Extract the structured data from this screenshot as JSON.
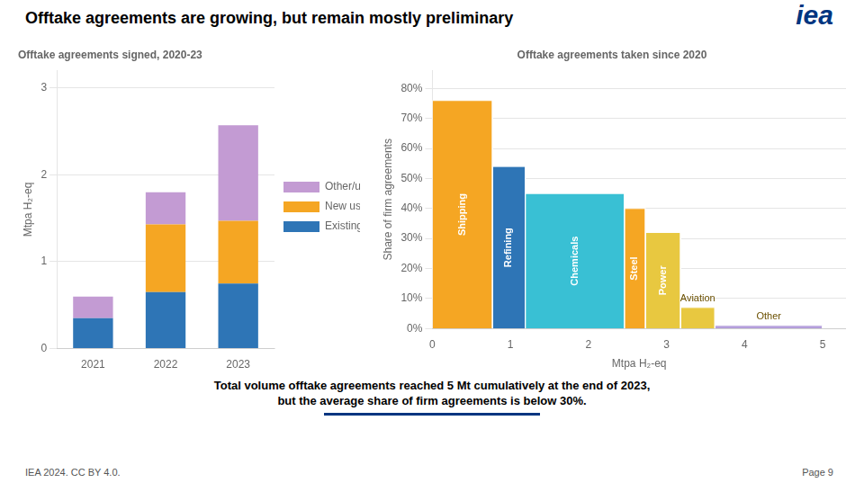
{
  "title": "Offtake agreements are growing, but remain mostly preliminary",
  "annotations": [
    "iea",
    "Total volume offtake agreements reached 5 Mt cumulatively at the end of 2023,",
    "but the average share of firm agreements is below 30%.",
    "IEA 2024. CC BY 4.0.",
    "Page 9"
  ],
  "chart_data": [
    {
      "type": "bar",
      "subtitle": "Offtake agreements signed, 2020-23",
      "categories": [
        "2021",
        "2022",
        "2023"
      ],
      "series": [
        {
          "name": "Existing uses",
          "color": "#2E75B6",
          "values": [
            0.35,
            0.65,
            0.75
          ]
        },
        {
          "name": "New uses",
          "color": "#F5A623",
          "values": [
            0.0,
            0.78,
            0.72
          ]
        },
        {
          "name": "Other/unknown",
          "color": "#C39BD3",
          "values": [
            0.25,
            0.37,
            1.1
          ]
        }
      ],
      "stacked": true,
      "ylabel": "Mtpa H₂-eq",
      "ylim": [
        0,
        3.2
      ],
      "yticks": [
        0,
        1,
        2,
        3
      ],
      "grid": true,
      "legend": "right"
    },
    {
      "type": "bar",
      "subtitle": "Offtake agreements taken since 2020",
      "categories": [
        "Shipping",
        "Refining",
        "Chemicals",
        "Steel",
        "Power",
        "Aviation",
        "Other"
      ],
      "x_start": [
        0.0,
        0.77,
        1.19,
        2.46,
        2.73,
        3.18,
        3.62
      ],
      "x_end": [
        0.77,
        1.19,
        2.46,
        2.73,
        3.18,
        3.62,
        5.0
      ],
      "values": [
        0.76,
        0.54,
        0.45,
        0.4,
        0.32,
        0.07,
        0.01
      ],
      "colors": [
        "#F5A623",
        "#2E75B6",
        "#39C0D4",
        "#F5A623",
        "#E8C840",
        "#E8C840",
        "#B39DDB"
      ],
      "xlabel": "Mtpa H₂-eq",
      "xlim": [
        0,
        5.3
      ],
      "xticks": [
        0,
        1,
        2,
        3,
        4,
        5
      ],
      "ylabel": "Share of firm agreements",
      "ylim": [
        0,
        0.86
      ],
      "yticks": [
        {
          "value": 0.0,
          "label": "0%"
        },
        {
          "value": 0.1,
          "label": "10%"
        },
        {
          "value": 0.2,
          "label": "20%"
        },
        {
          "value": 0.3,
          "label": "30%"
        },
        {
          "value": 0.4,
          "label": "40%"
        },
        {
          "value": 0.5,
          "label": "50%"
        },
        {
          "value": 0.6,
          "label": "60%"
        },
        {
          "value": 0.7,
          "label": "70%"
        },
        {
          "value": 0.8,
          "label": "80%"
        }
      ],
      "grid": true
    }
  ]
}
